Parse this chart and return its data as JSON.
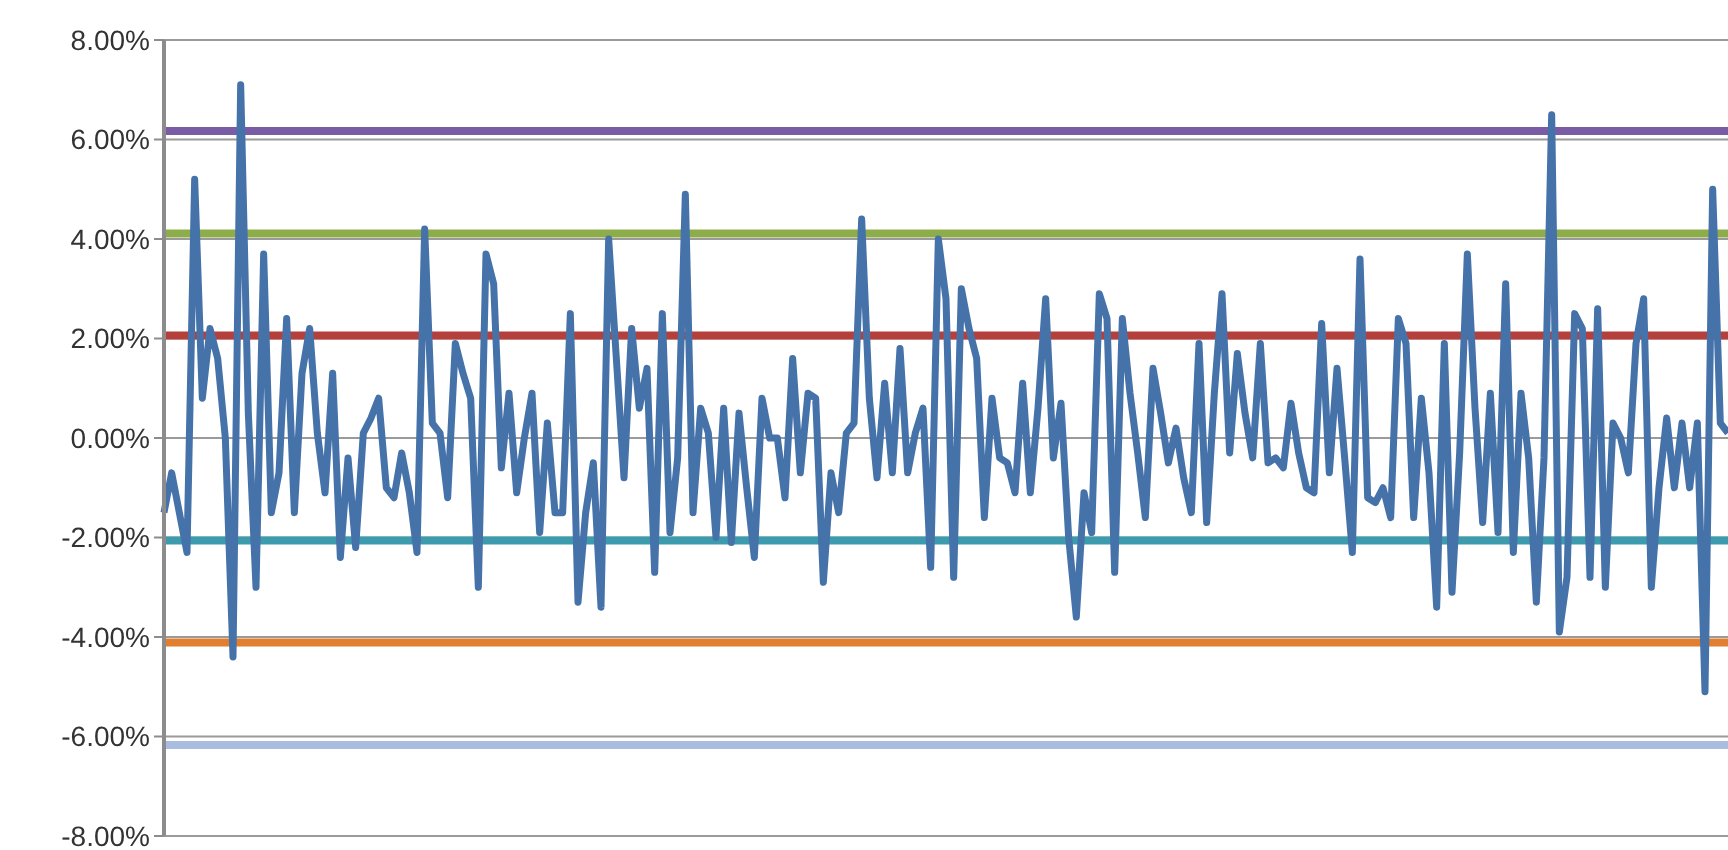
{
  "chart_data": {
    "type": "line",
    "categories": [
      null,
      null,
      null,
      null,
      null,
      null,
      null,
      null,
      null,
      null,
      null,
      null,
      null,
      null,
      null,
      null,
      null,
      null,
      null,
      null,
      null,
      null,
      null,
      null,
      null,
      null,
      null,
      null,
      null,
      null,
      null,
      null,
      null,
      null,
      null,
      null,
      null,
      null,
      null,
      null,
      null,
      null,
      null,
      null,
      null,
      null,
      null,
      null,
      null,
      null,
      null,
      null,
      null,
      null,
      null,
      null,
      null,
      null,
      null,
      null,
      null,
      null,
      null,
      null,
      null,
      null,
      null,
      null,
      null,
      null,
      null,
      null,
      null,
      null,
      null,
      null,
      null,
      null,
      null,
      null,
      null,
      null,
      null,
      null,
      null,
      null,
      null,
      null,
      null,
      null,
      null,
      null,
      null,
      null,
      null,
      null,
      null,
      null,
      null,
      null,
      null,
      null,
      null,
      null,
      null,
      null,
      null,
      null,
      null,
      null,
      null,
      null,
      null,
      null,
      null,
      null,
      null,
      null,
      null,
      null,
      null,
      null,
      null,
      null,
      null,
      null,
      null,
      null,
      null,
      null,
      null,
      null,
      null,
      null,
      null,
      null,
      null,
      null,
      null,
      null,
      null,
      null,
      null,
      null,
      null,
      null,
      null,
      null,
      null,
      null,
      null,
      null,
      null,
      null,
      null,
      null,
      null,
      null,
      null,
      null,
      null,
      null,
      null,
      null,
      null,
      null,
      null,
      null,
      null,
      null,
      null,
      null,
      null,
      null,
      null,
      null,
      null,
      null,
      null,
      null,
      null,
      null,
      null,
      null,
      null,
      null,
      null,
      null,
      null,
      null,
      null,
      null,
      null,
      null,
      null,
      null,
      null,
      null,
      null,
      null,
      null,
      null,
      null,
      null,
      null
    ],
    "series": [
      {
        "color": "#4672aa",
        "values": [
          -1.5,
          -0.7,
          -1.5,
          -2.3,
          5.2,
          0.8,
          2.2,
          1.6,
          0,
          -4.4,
          7.1,
          0.5,
          -3,
          3.7,
          -1.5,
          -0.7,
          2.4,
          -1.5,
          1.3,
          2.2,
          0.1,
          -1.1,
          1.3,
          -2.4,
          -0.4,
          -2.2,
          0.1,
          0.4,
          0.8,
          -1,
          -1.2,
          -0.3,
          -1.1,
          -2.3,
          4.2,
          0.3,
          0.1,
          -1.2,
          1.9,
          1.3,
          0.8,
          -3,
          3.7,
          3.1,
          -0.6,
          0.9,
          -1.1,
          0,
          0.9,
          -1.9,
          0.3,
          -1.5,
          -1.5,
          2.5,
          -3.3,
          -1.5,
          -0.5,
          -3.4,
          4.0,
          1.6,
          -0.8,
          2.2,
          0.6,
          1.4,
          -2.7,
          2.5,
          -1.9,
          -0.4,
          4.9,
          -1.5,
          0.6,
          0.1,
          -2,
          0.6,
          -2.1,
          0.5,
          -1,
          -2.4,
          0.8,
          0,
          0,
          -1.2,
          1.6,
          -0.7,
          0.9,
          0.8,
          -2.9,
          -0.7,
          -1.5,
          0.1,
          0.3,
          4.4,
          0.8,
          -0.8,
          1.1,
          -0.7,
          1.8,
          -0.7,
          0.1,
          0.6,
          -2.6,
          4.0,
          2.8,
          -2.8,
          3.0,
          2.2,
          1.6,
          -1.6,
          0.8,
          -0.4,
          -0.5,
          -1.1,
          1.1,
          -1.1,
          0.6,
          2.8,
          -0.4,
          0.7,
          -2,
          -3.6,
          -1.1,
          -1.9,
          2.9,
          2.4,
          -2.7,
          2.4,
          0.9,
          -0.3,
          -1.6,
          1.4,
          0.5,
          -0.5,
          0.2,
          -0.8,
          -1.5,
          1.9,
          -1.7,
          0.9,
          2.9,
          -0.3,
          1.7,
          0.5,
          -0.4,
          1.9,
          -0.5,
          -0.4,
          -0.6,
          0.7,
          -0.3,
          -1,
          -1.1,
          2.3,
          -0.7,
          1.4,
          -0.4,
          -2.3,
          3.6,
          -1.2,
          -1.3,
          -1,
          -1.6,
          2.4,
          1.9,
          -1.6,
          0.8,
          -0.7,
          -3.4,
          1.9,
          -3.1,
          -0.3,
          3.7,
          0.6,
          -1.7,
          0.9,
          -1.9,
          3.1,
          -2.3,
          0.9,
          -0.4,
          -3.3,
          -0.4,
          6.5,
          -3.9,
          -2.8,
          2.5,
          2.2,
          -2.8,
          2.6,
          -3,
          0.3,
          0,
          -0.7,
          1.9,
          2.8,
          -3,
          -1,
          0.4,
          -1,
          0.3,
          -1,
          0.3,
          -5.1,
          5.0,
          0.3,
          0.1
        ]
      }
    ],
    "ylim": [
      -8,
      8
    ],
    "yticks": [
      {
        "value": -8,
        "label": "-8.00%"
      },
      {
        "value": -6,
        "label": "-6.00%"
      },
      {
        "value": -4,
        "label": "-4.00%"
      },
      {
        "value": -2,
        "label": "-2.00%"
      },
      {
        "value": 0,
        "label": "0.00%"
      },
      {
        "value": 2,
        "label": "2.00%"
      },
      {
        "value": 4,
        "label": "4.00%"
      },
      {
        "value": 6,
        "label": "6.00%"
      },
      {
        "value": 8,
        "label": "8.00%"
      }
    ],
    "ref_lines": [
      {
        "axis": "y",
        "value": 6.17,
        "color": "#7a5ca6"
      },
      {
        "axis": "y",
        "value": 4.11,
        "color": "#8cad4a"
      },
      {
        "axis": "y",
        "value": 2.06,
        "color": "#b5403b"
      },
      {
        "axis": "y",
        "value": -2.06,
        "color": "#3c9cae"
      },
      {
        "axis": "y",
        "value": -4.11,
        "color": "#e07f30"
      },
      {
        "axis": "y",
        "value": -6.17,
        "color": "#a8bde0"
      }
    ],
    "grid": "y",
    "marker": "none",
    "line_style": "solid",
    "tick_labels": "y"
  }
}
